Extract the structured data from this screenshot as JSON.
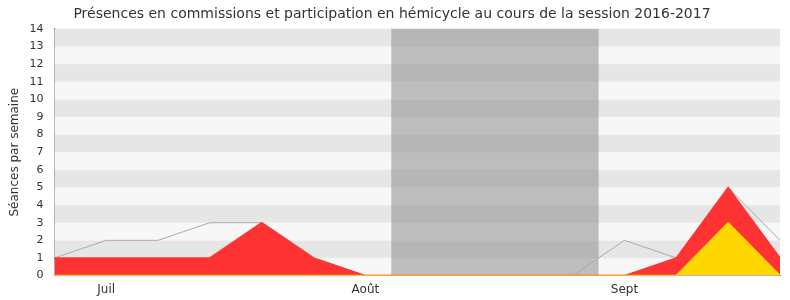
{
  "chart_data": {
    "type": "line",
    "title": "Présences en commissions et participation en hémicycle au cours de la session 2016-2017",
    "y_label": "Séances par semaine",
    "categories": [
      null,
      "Juil",
      null,
      null,
      null,
      null,
      "Août",
      null,
      null,
      null,
      null,
      "Sept",
      null,
      null,
      null
    ],
    "series": [
      {
        "type": "line",
        "color": "#aaaaaa",
        "values": [
          1,
          2,
          2,
          3,
          3,
          1,
          0,
          0,
          0,
          0,
          0,
          2,
          1,
          5,
          2
        ]
      },
      {
        "type": "area",
        "color": "#ff3333",
        "values": [
          1,
          1,
          1,
          1,
          3,
          1,
          0,
          0,
          0,
          0,
          0,
          0,
          1,
          5,
          1
        ]
      },
      {
        "type": "area",
        "color": "#ffd700",
        "values": [
          0,
          0,
          0,
          0,
          0,
          0,
          0,
          0,
          0,
          0,
          0,
          0,
          0,
          3,
          0
        ]
      }
    ],
    "shaded_span": [
      6.5,
      10.5
    ],
    "ylim": [
      0,
      14
    ],
    "yticks": [
      0,
      1,
      2,
      3,
      4,
      5,
      6,
      7,
      8,
      9,
      10,
      11,
      12,
      13,
      14
    ],
    "grid": true
  }
}
